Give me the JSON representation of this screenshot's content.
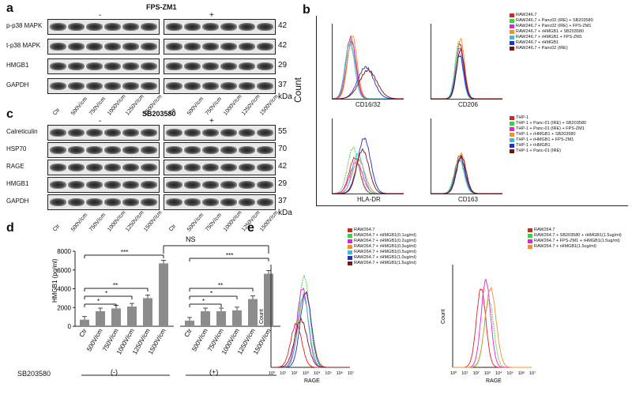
{
  "panels": {
    "a": {
      "letter": "a",
      "treatment_title": "FPS-ZM1",
      "minus": "-",
      "plus": "+",
      "rows": [
        "p-p38 MAPK",
        "t-p38 MAPK",
        "HMGB1",
        "GAPDH"
      ],
      "kda": [
        "42",
        "42",
        "29",
        "37"
      ],
      "kda_unit": "kDa",
      "lanes": [
        "Ctr",
        "500V/cm",
        "750V/cm",
        "1000V/cm",
        "1250V/cm",
        "1500V/cm"
      ]
    },
    "b": {
      "letter": "b",
      "count_label": "Count",
      "legend_top": [
        "RAW246.7",
        "RAW246.7 + Panc02 (IRE) + SB203580",
        "RAW246.7 + Panc02 (IRE) + FPS-ZM1",
        "RAW246.7 + rHMGB1 + SB203580",
        "RAW246.7 + rHMGB1 + FPS-ZM1",
        "RAW246.7 + rHMGB1",
        "RAW246.7 + Panc02 (IRE)"
      ],
      "legend_bottom": [
        "THP-1",
        "THP-1 + Panc-01 (IRE) + SB203580",
        "THP-1 + Panc-01 (IRE) + FPS-ZM1",
        "THP-1 + rHMGB1 + SB203580",
        "THP-1 + rHMGB1 + FPS-ZM1",
        "THP-1 + rHMGB1",
        "THP-1 + Panc-01 (IRE)"
      ],
      "legend_colors": [
        "#e02020",
        "#40d040",
        "#e020e0",
        "#f09030",
        "#30c0e0",
        "#2030c0",
        "#801010"
      ],
      "plot_labels": [
        "CD16/32",
        "CD206",
        "HLA-DR",
        "CD163"
      ]
    },
    "c": {
      "letter": "c",
      "treatment_title": "SB203580",
      "minus": "-",
      "plus": "+",
      "rows": [
        "Calreticulin",
        "HSP70",
        "RAGE",
        "HMGB1",
        "GAPDH"
      ],
      "kda": [
        "55",
        "70",
        "42",
        "29",
        "37"
      ],
      "kda_unit": "kDa",
      "lanes": [
        "Ctr",
        "500V/cm",
        "750V/cm",
        "1000V/cm",
        "1250V/cm",
        "1500V/cm"
      ]
    },
    "d": {
      "letter": "d",
      "sb_label": "SB203580",
      "group_minus": "(-)",
      "group_plus": "(+)",
      "ns_label": "NS",
      "sig": [
        "*",
        "*",
        "**",
        "***",
        "*",
        "*",
        "**",
        "***"
      ]
    },
    "e": {
      "letter": "e",
      "xlabel": "RAGE",
      "ylabel": "Count",
      "legend_left": [
        "RAW264.7",
        "RAW264.7 + rHMGB1(0.1ug/ml)",
        "RAW264.7 + rHMGB1(0.2ug/ml)",
        "RAW264.7 + rHMGB1(0.3ug/ml)",
        "RAW264.7 + rHMGB1(0.5ug/ml)",
        "RAW264.7 + rHMGB1(1.0ug/ml)",
        "RAW264.7 + rHMGB1(1.5ug/ml)"
      ],
      "legend_left_colors": [
        "#e02020",
        "#40d040",
        "#e020e0",
        "#f09030",
        "#30c0e0",
        "#2030c0",
        "#801010"
      ],
      "legend_right": [
        "RAW264.7",
        "RAW264.7 + SB203580 + rHMGB1(1.5ug/ml)",
        "RAW264.7 + FPS-ZM1 + rHMGB1(1.5ug/ml)",
        "RAW264.7 + rHMGB1(1.5ug/ml)"
      ],
      "legend_right_colors": [
        "#e02020",
        "#40d040",
        "#e020e0",
        "#f09030"
      ],
      "xticks": [
        "10⁰",
        "10¹",
        "10²",
        "10³",
        "10⁴",
        "10⁵",
        "10⁶",
        "10⁷"
      ]
    }
  },
  "chart_data": {
    "type": "bar",
    "ylabel": "HMGB1 (pg/ml)",
    "yticks": [
      "0",
      "2000",
      "4000",
      "6000",
      "8000"
    ],
    "ylim": [
      0,
      8000
    ],
    "categories": [
      "Ctr",
      "500V/cm",
      "750V/cm",
      "1000V/cm",
      "1250V/cm",
      "1500V/cm",
      "Ctr",
      "500V/cm",
      "750V/cm",
      "1000V/cm",
      "1250V/cm",
      "1500V/cm"
    ],
    "values": [
      700,
      1600,
      1900,
      2100,
      3000,
      6700,
      600,
      1600,
      1600,
      1700,
      2900,
      5600
    ]
  }
}
